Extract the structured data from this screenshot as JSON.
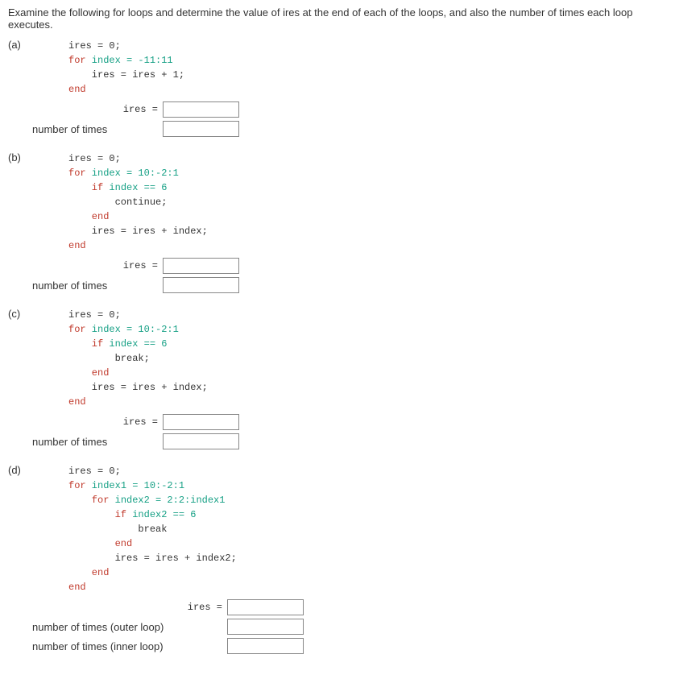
{
  "intro": "Examine the following for loops and determine the value of ires at the end of each of the loops, and also the number of times each loop executes.",
  "code_font": "Courier New",
  "code_fontsize": 12,
  "body_fontsize": 13,
  "color_code_red": "#c0392b",
  "color_code_green": "#16a085",
  "color_text": "#333333",
  "color_input_border": "#888888",
  "parts": {
    "a": {
      "label": "(a)",
      "code_line1": "ires = 0;",
      "code_line2_a": "for",
      "code_line2_b": " index = -11:11",
      "code_line3": "    ires = ires + 1;",
      "code_line4": "end",
      "ires_label": "ires =",
      "times_label": "number of times"
    },
    "b": {
      "label": "(b)",
      "code_line1": "ires = 0;",
      "code_line2_a": "for",
      "code_line2_b": " index = 10:-2:1",
      "code_line3_a": "    if",
      "code_line3_b": " index == 6",
      "code_line4": "        continue;",
      "code_line5": "    end",
      "code_line6": "    ires = ires + index;",
      "code_line7": "end",
      "ires_label": "ires =",
      "times_label": "number of times"
    },
    "c": {
      "label": "(c)",
      "code_line1": "ires = 0;",
      "code_line2_a": "for",
      "code_line2_b": " index = 10:-2:1",
      "code_line3_a": "    if",
      "code_line3_b": " index == 6",
      "code_line4": "        break;",
      "code_line5": "    end",
      "code_line6": "    ires = ires + index;",
      "code_line7": "end",
      "ires_label": "ires =",
      "times_label": "number of times"
    },
    "d": {
      "label": "(d)",
      "code_line1": "ires = 0;",
      "code_line2_a": "for",
      "code_line2_b": " index1 = 10:-2:1",
      "code_line3_a": "    for",
      "code_line3_b": " index2 = 2:2:index1",
      "code_line4_a": "        if",
      "code_line4_b": " index2 == 6",
      "code_line5": "            break",
      "code_line6": "        end",
      "code_line7": "        ires = ires + index2;",
      "code_line8": "    end",
      "code_line9": "end",
      "ires_label": "ires =",
      "outer_label": "number of times (outer loop)",
      "inner_label": "number of times (inner loop)"
    }
  }
}
